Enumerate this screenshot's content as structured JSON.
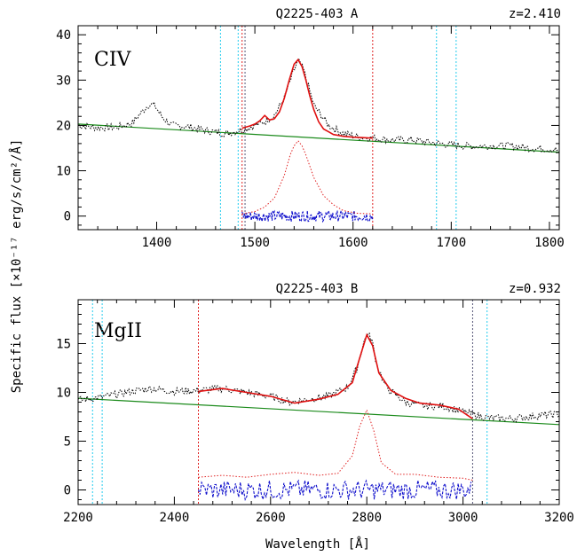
{
  "ylabel": "Specific flux [×10⁻¹⁷ erg/s/cm²/Å]",
  "xlabel": "Wavelength [Å]",
  "chart_data": [
    {
      "type": "line",
      "title": "Q2225-403 A",
      "redshift": "z=2.410",
      "ion": "CIV",
      "xlim": [
        1320,
        1810
      ],
      "ylim": [
        -3,
        42
      ],
      "xticks": [
        1400,
        1500,
        1600,
        1700,
        1800
      ],
      "yticks": [
        0,
        10,
        20,
        30,
        40
      ],
      "cyan_lines": [
        1465,
        1483,
        1685,
        1705
      ],
      "red_lines": [
        1487,
        1620
      ],
      "dark_lines": [
        1490
      ],
      "continuum": {
        "x": [
          1320,
          1810
        ],
        "y": [
          20.3,
          14.1
        ]
      },
      "data_spectrum": {
        "x": [
          1320,
          1340,
          1360,
          1375,
          1385,
          1392,
          1398,
          1405,
          1415,
          1430,
          1450,
          1470,
          1490,
          1500,
          1510,
          1520,
          1530,
          1538,
          1544,
          1550,
          1560,
          1575,
          1590,
          1605,
          1620,
          1640,
          1660,
          1680,
          1700,
          1720,
          1740,
          1760,
          1780,
          1800,
          1810
        ],
        "y": [
          20.0,
          19.5,
          19.6,
          20.5,
          23.0,
          24.6,
          24.4,
          22.0,
          20.0,
          19.8,
          18.9,
          18.2,
          19.2,
          20.0,
          20.8,
          22.3,
          26.0,
          31.0,
          34.4,
          32.0,
          24.5,
          20.0,
          18.2,
          17.5,
          17.2,
          16.8,
          16.8,
          16.2,
          15.7,
          15.4,
          15.5,
          15.5,
          15.0,
          14.8,
          14.5
        ]
      },
      "model_fit": {
        "x": [
          1487,
          1495,
          1500,
          1505,
          1510,
          1515,
          1520,
          1525,
          1530,
          1535,
          1540,
          1544,
          1548,
          1552,
          1556,
          1560,
          1565,
          1570,
          1575,
          1580,
          1590,
          1600,
          1610,
          1620
        ],
        "y": [
          19.4,
          19.9,
          20.3,
          21.0,
          22.2,
          21.2,
          21.5,
          23.0,
          26.0,
          30.0,
          33.5,
          34.5,
          33.0,
          30.0,
          26.5,
          23.5,
          20.8,
          19.2,
          18.6,
          18.0,
          17.6,
          17.4,
          17.3,
          17.2
        ]
      },
      "broad_component": {
        "x": [
          1487,
          1500,
          1510,
          1520,
          1530,
          1536,
          1540,
          1544,
          1548,
          1552,
          1560,
          1570,
          1580,
          1590,
          1605,
          1620
        ],
        "y": [
          0.5,
          1.0,
          2.0,
          4.0,
          9.0,
          13.5,
          15.5,
          16.6,
          15.5,
          13.5,
          8.5,
          4.5,
          2.5,
          1.2,
          0.6,
          0.5
        ]
      },
      "residual_band": {
        "x": [
          1487,
          1620
        ],
        "y": [
          0.0,
          0.0
        ],
        "amplitude": 1.2
      }
    },
    {
      "type": "line",
      "title": "Q2225-403 B",
      "redshift": "z=0.932",
      "ion": "MgII",
      "xlim": [
        2200,
        3200
      ],
      "ylim": [
        -1.5,
        19.5
      ],
      "xticks": [
        2200,
        2400,
        2600,
        2800,
        3000,
        3200
      ],
      "yticks": [
        0,
        5,
        10,
        15
      ],
      "cyan_lines": [
        2230,
        2250,
        3050
      ],
      "red_lines": [
        2450
      ],
      "dark_lines": [
        3020
      ],
      "continuum": {
        "x": [
          2200,
          3200
        ],
        "y": [
          9.4,
          6.7
        ]
      },
      "data_spectrum": {
        "x": [
          2200,
          2250,
          2300,
          2350,
          2400,
          2450,
          2500,
          2550,
          2600,
          2640,
          2680,
          2720,
          2760,
          2780,
          2790,
          2800,
          2810,
          2820,
          2840,
          2880,
          2920,
          2960,
          3000,
          3050,
          3100,
          3150,
          3200
        ],
        "y": [
          9.2,
          9.5,
          10.0,
          10.4,
          10.1,
          10.2,
          10.4,
          10.0,
          9.6,
          9.0,
          9.3,
          9.6,
          10.5,
          12.5,
          14.5,
          16.0,
          15.5,
          13.0,
          10.5,
          9.0,
          8.6,
          8.6,
          8.0,
          7.4,
          7.3,
          7.6,
          7.8
        ]
      },
      "model_fit": {
        "x": [
          2450,
          2500,
          2550,
          2600,
          2650,
          2700,
          2740,
          2770,
          2785,
          2800,
          2812,
          2825,
          2850,
          2880,
          2910,
          2950,
          2990,
          3020
        ],
        "y": [
          10.1,
          10.4,
          10.0,
          9.6,
          8.9,
          9.3,
          9.8,
          11.0,
          13.5,
          15.9,
          14.8,
          12.0,
          10.2,
          9.4,
          8.9,
          8.7,
          8.3,
          7.3
        ]
      },
      "broad_component": {
        "x": [
          2450,
          2500,
          2550,
          2600,
          2650,
          2700,
          2740,
          2770,
          2785,
          2800,
          2815,
          2830,
          2860,
          2900,
          2950,
          3000,
          3020
        ],
        "y": [
          1.3,
          1.5,
          1.3,
          1.6,
          1.8,
          1.5,
          1.7,
          3.5,
          6.5,
          8.2,
          6.0,
          2.8,
          1.6,
          1.6,
          1.3,
          1.2,
          1.0
        ]
      },
      "residual_band": {
        "x": [
          2450,
          3020
        ],
        "y": [
          0.0,
          0.0
        ],
        "amplitude": 1.0
      }
    }
  ]
}
